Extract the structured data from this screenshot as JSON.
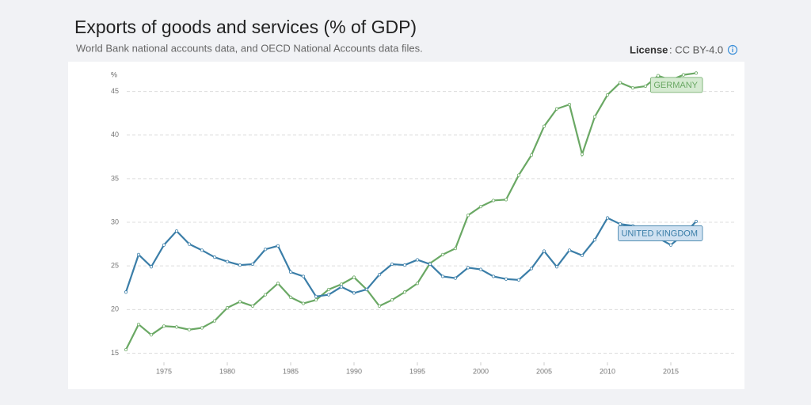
{
  "chart_data": {
    "type": "line",
    "title": "Exports of goods and services (% of GDP)",
    "subtitle": "World Bank national accounts data, and OECD National Accounts data files.",
    "license": {
      "label": "License",
      "value": ": CC BY-4.0"
    },
    "y_unit": "%",
    "x": [
      1972,
      1973,
      1974,
      1975,
      1976,
      1977,
      1978,
      1979,
      1980,
      1981,
      1982,
      1983,
      1984,
      1985,
      1986,
      1987,
      1988,
      1989,
      1990,
      1991,
      1992,
      1993,
      1994,
      1995,
      1996,
      1997,
      1998,
      1999,
      2000,
      2001,
      2002,
      2003,
      2004,
      2005,
      2006,
      2007,
      2008,
      2009,
      2010,
      2011,
      2012,
      2013,
      2014,
      2015,
      2016,
      2017
    ],
    "xlim": [
      1971,
      2020
    ],
    "xticks": [
      1975,
      1980,
      1985,
      1990,
      1995,
      2000,
      2005,
      2010,
      2015
    ],
    "ylim": [
      14.5,
      47.5
    ],
    "yticks": [
      15,
      20,
      25,
      30,
      35,
      40,
      45
    ],
    "grid": true,
    "series": [
      {
        "name": "GERMANY",
        "color": "#6aa864",
        "values": [
          15.4,
          18.3,
          17.1,
          18.1,
          18.0,
          17.7,
          17.9,
          18.7,
          20.2,
          20.9,
          20.4,
          21.7,
          23.0,
          21.4,
          20.7,
          21.1,
          22.3,
          22.9,
          23.7,
          22.3,
          20.4,
          21.1,
          22.0,
          23.0,
          25.3,
          26.3,
          27.0,
          30.8,
          31.8,
          32.5,
          32.6,
          35.4,
          37.7,
          41.0,
          43.0,
          43.5,
          37.8,
          42.1,
          44.6,
          46.0,
          45.4,
          45.6,
          46.8,
          46.3,
          46.9,
          47.1
        ]
      },
      {
        "name": "UNITED KINGDOM",
        "color": "#3b7ea8",
        "values": [
          22.0,
          26.3,
          24.9,
          27.4,
          29.0,
          27.5,
          26.8,
          26.0,
          25.5,
          25.1,
          25.2,
          26.9,
          27.3,
          24.3,
          23.8,
          21.5,
          21.7,
          22.6,
          21.9,
          22.3,
          24.0,
          25.2,
          25.1,
          25.7,
          25.2,
          23.8,
          23.6,
          24.8,
          24.6,
          23.8,
          23.5,
          23.4,
          24.7,
          26.7,
          24.9,
          26.8,
          26.2,
          28.0,
          30.5,
          29.8,
          29.6,
          29.3,
          28.2,
          27.4,
          28.6,
          30.1
        ]
      }
    ]
  }
}
